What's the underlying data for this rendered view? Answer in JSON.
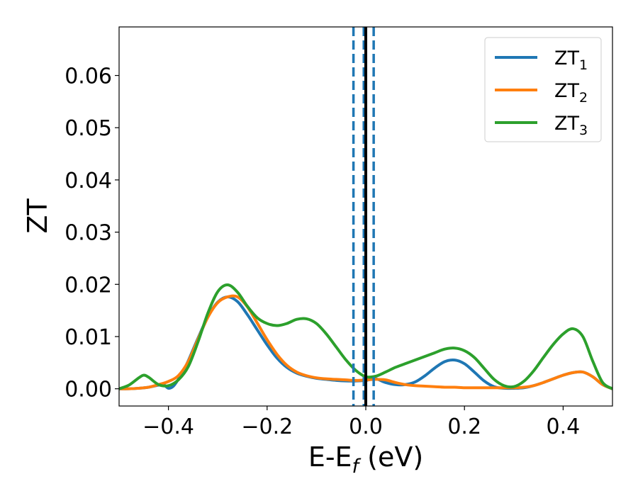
{
  "chart_data": {
    "type": "line",
    "xlabel": "E-E",
    "xlabel_sub": "f",
    "xlabel_unit": "(eV)",
    "ylabel": "ZT",
    "xlim": [
      -0.5,
      0.5
    ],
    "ylim": [
      -0.0033,
      0.0693
    ],
    "xticks": [
      -0.4,
      -0.2,
      0.0,
      0.2,
      0.4
    ],
    "xtick_labels": [
      "−0.4",
      "−0.2",
      "0.0",
      "0.2",
      "0.4"
    ],
    "yticks": [
      0.0,
      0.01,
      0.02,
      0.03,
      0.04,
      0.05,
      0.06
    ],
    "ytick_labels": [
      "0.00",
      "0.01",
      "0.02",
      "0.03",
      "0.04",
      "0.05",
      "0.06"
    ],
    "grid": false,
    "legend_position": "top-right",
    "vertical_lines": [
      {
        "x": -0.025,
        "style": "dashed",
        "color": "#1f77b4"
      },
      {
        "x": -0.004,
        "style": "dashed",
        "color": "#1f77b4"
      },
      {
        "x": 0.016,
        "style": "dashed",
        "color": "#1f77b4"
      },
      {
        "x": 0.0,
        "style": "solid",
        "color": "#000000"
      }
    ],
    "series": [
      {
        "name": "ZT",
        "name_sub": "1",
        "color": "#1f77b4",
        "x": [
          -0.5,
          -0.48,
          -0.46,
          -0.44,
          -0.42,
          -0.41,
          -0.4,
          -0.39,
          -0.38,
          -0.37,
          -0.36,
          -0.34,
          -0.32,
          -0.3,
          -0.28,
          -0.26,
          -0.24,
          -0.22,
          -0.2,
          -0.18,
          -0.16,
          -0.14,
          -0.12,
          -0.1,
          -0.08,
          -0.06,
          -0.04,
          -0.02,
          0.0,
          0.02,
          0.04,
          0.06,
          0.08,
          0.1,
          0.12,
          0.14,
          0.16,
          0.18,
          0.2,
          0.22,
          0.24,
          0.26,
          0.28,
          0.3,
          0.32,
          0.34,
          0.36,
          0.38,
          0.4,
          0.42,
          0.44,
          0.46,
          0.48,
          0.5
        ],
        "y": [
          0.0,
          0.0,
          0.0001,
          0.0003,
          0.0007,
          0.0008,
          0.0001,
          0.0005,
          0.0018,
          0.0034,
          0.0053,
          0.0097,
          0.0138,
          0.0166,
          0.0176,
          0.0167,
          0.0142,
          0.0113,
          0.0084,
          0.0059,
          0.0041,
          0.003,
          0.0024,
          0.002,
          0.0018,
          0.0016,
          0.0015,
          0.0015,
          0.0016,
          0.0019,
          0.0012,
          0.0008,
          0.0008,
          0.0013,
          0.0025,
          0.004,
          0.0052,
          0.0055,
          0.0048,
          0.0032,
          0.0015,
          0.0004,
          0.0001,
          0.0001,
          0.0002,
          0.0006,
          0.0012,
          0.0019,
          0.0026,
          0.0031,
          0.0032,
          0.0023,
          0.0008,
          0.0
        ]
      },
      {
        "name": "ZT",
        "name_sub": "2",
        "color": "#ff7f0e",
        "x": [
          -0.5,
          -0.48,
          -0.46,
          -0.44,
          -0.42,
          -0.4,
          -0.38,
          -0.36,
          -0.34,
          -0.32,
          -0.3,
          -0.28,
          -0.26,
          -0.24,
          -0.22,
          -0.2,
          -0.18,
          -0.16,
          -0.14,
          -0.12,
          -0.1,
          -0.08,
          -0.06,
          -0.04,
          -0.02,
          0.0,
          0.02,
          0.04,
          0.06,
          0.08,
          0.1,
          0.12,
          0.14,
          0.16,
          0.18,
          0.2,
          0.22,
          0.24,
          0.26,
          0.28,
          0.3,
          0.32,
          0.34,
          0.36,
          0.38,
          0.4,
          0.42,
          0.44,
          0.46,
          0.48,
          0.5
        ],
        "y": [
          0.0,
          0.0,
          0.0001,
          0.0003,
          0.0008,
          0.0014,
          0.0025,
          0.0052,
          0.0095,
          0.0137,
          0.0165,
          0.0176,
          0.0176,
          0.0157,
          0.0126,
          0.0094,
          0.0066,
          0.0045,
          0.0032,
          0.0025,
          0.0021,
          0.0019,
          0.0018,
          0.0017,
          0.0016,
          0.0017,
          0.0018,
          0.0017,
          0.0012,
          0.0008,
          0.0006,
          0.0005,
          0.0004,
          0.0003,
          0.0003,
          0.0002,
          0.0002,
          0.0002,
          0.0002,
          0.0002,
          0.0002,
          0.0003,
          0.0006,
          0.0012,
          0.0019,
          0.0026,
          0.0031,
          0.0032,
          0.0023,
          0.0008,
          0.0
        ]
      },
      {
        "name": "ZT",
        "name_sub": "3",
        "color": "#2ca02c",
        "x": [
          -0.5,
          -0.48,
          -0.46,
          -0.45,
          -0.44,
          -0.42,
          -0.4,
          -0.38,
          -0.36,
          -0.34,
          -0.32,
          -0.3,
          -0.28,
          -0.26,
          -0.24,
          -0.22,
          -0.2,
          -0.18,
          -0.16,
          -0.14,
          -0.12,
          -0.1,
          -0.08,
          -0.06,
          -0.04,
          -0.02,
          0.0,
          0.02,
          0.04,
          0.06,
          0.08,
          0.1,
          0.12,
          0.14,
          0.16,
          0.18,
          0.2,
          0.22,
          0.24,
          0.26,
          0.28,
          0.3,
          0.32,
          0.34,
          0.36,
          0.38,
          0.4,
          0.42,
          0.44,
          0.46,
          0.48,
          0.5
        ],
        "y": [
          0.0,
          0.0007,
          0.0021,
          0.0026,
          0.0022,
          0.0008,
          0.0006,
          0.0017,
          0.0042,
          0.009,
          0.0145,
          0.0186,
          0.0199,
          0.0185,
          0.0158,
          0.0136,
          0.0125,
          0.0121,
          0.0125,
          0.0133,
          0.0134,
          0.0125,
          0.0105,
          0.008,
          0.0055,
          0.0035,
          0.0023,
          0.0024,
          0.0032,
          0.0041,
          0.0048,
          0.0055,
          0.0062,
          0.0069,
          0.0076,
          0.0078,
          0.0073,
          0.006,
          0.0039,
          0.0018,
          0.0006,
          0.0004,
          0.0014,
          0.0034,
          0.006,
          0.0085,
          0.0105,
          0.0115,
          0.01,
          0.0053,
          0.0012,
          0.0
        ]
      }
    ]
  }
}
